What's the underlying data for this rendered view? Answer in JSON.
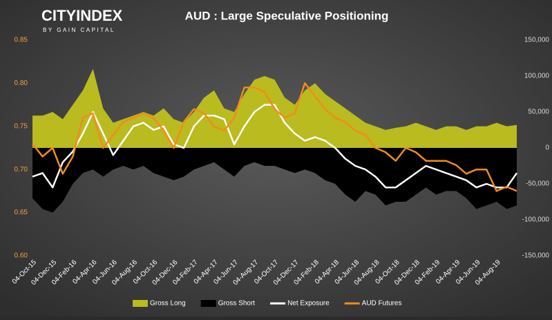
{
  "chart_data": {
    "type": "line",
    "title": "AUD : Large Speculative Positioning",
    "logo": {
      "name": "CITYINDEX",
      "tagline": "BY GAIN CAPITAL"
    },
    "categories": [
      "04-Oct-15",
      null,
      "04-Dec-15",
      null,
      "04-Feb-16",
      null,
      "04-Apr-16",
      null,
      "04-Jun-16",
      null,
      "04-Aug-16",
      null,
      "04-Oct-16",
      null,
      "04-Dec-16",
      null,
      "04-Feb-17",
      null,
      "04-Apr-17",
      null,
      "04-Jun-17",
      null,
      "04-Aug-17",
      null,
      "04-Oct-17",
      null,
      "04-Dec-17",
      null,
      "04-Feb-18",
      null,
      "04-Apr-18",
      null,
      "04-Jun-18",
      null,
      "04-Aug-18",
      null,
      "04-Oct-18",
      null,
      "04-Dec-18",
      null,
      "04-Feb-19",
      null,
      "04-Apr-19",
      null,
      "04-Jun-19",
      null,
      "04-Aug-19",
      null,
      null
    ],
    "series": [
      {
        "name": "Gross Long",
        "type": "area",
        "axis": "y2",
        "color": "#b9bb1f",
        "values": [
          45000,
          45000,
          50000,
          40000,
          60000,
          80000,
          110000,
          55000,
          35000,
          40000,
          45000,
          50000,
          45000,
          55000,
          40000,
          35000,
          50000,
          70000,
          80000,
          55000,
          50000,
          75000,
          95000,
          100000,
          95000,
          70000,
          60000,
          80000,
          90000,
          75000,
          65000,
          55000,
          45000,
          35000,
          30000,
          25000,
          28000,
          30000,
          35000,
          30000,
          25000,
          30000,
          30000,
          25000,
          30000,
          30000,
          35000,
          30000,
          32000
        ]
      },
      {
        "name": "Gross Short",
        "type": "area",
        "axis": "y2",
        "color": "#000000",
        "values": [
          -70000,
          -85000,
          -90000,
          -75000,
          -50000,
          -35000,
          -30000,
          -40000,
          -30000,
          -25000,
          -30000,
          -25000,
          -35000,
          -40000,
          -45000,
          -40000,
          -30000,
          -25000,
          -20000,
          -30000,
          -40000,
          -25000,
          -20000,
          -25000,
          -25000,
          -30000,
          -35000,
          -30000,
          -35000,
          -45000,
          -50000,
          -65000,
          -75000,
          -60000,
          -65000,
          -80000,
          -75000,
          -75000,
          -65000,
          -55000,
          -65000,
          -60000,
          -60000,
          -70000,
          -85000,
          -80000,
          -75000,
          -85000,
          -80000
        ]
      },
      {
        "name": "Net Exposure",
        "type": "line",
        "axis": "y2",
        "color": "#ffffff",
        "values": [
          -40000,
          -35000,
          -55000,
          -20000,
          -5000,
          20000,
          50000,
          20000,
          -10000,
          10000,
          30000,
          35000,
          25000,
          30000,
          5000,
          0,
          30000,
          45000,
          45000,
          40000,
          5000,
          30000,
          50000,
          60000,
          60000,
          35000,
          20000,
          10000,
          15000,
          10000,
          0,
          -15000,
          -25000,
          -30000,
          -40000,
          -55000,
          -55000,
          -45000,
          -35000,
          -25000,
          -30000,
          -35000,
          -40000,
          -45000,
          -55000,
          -50000,
          -55000,
          -55000,
          -35000
        ]
      },
      {
        "name": "AUD Futures",
        "type": "line",
        "axis": "y",
        "color": "#f28c1c",
        "values": [
          0.73,
          0.715,
          0.725,
          0.695,
          0.715,
          0.76,
          0.765,
          0.725,
          0.74,
          0.755,
          0.76,
          0.765,
          0.76,
          0.745,
          0.725,
          0.755,
          0.77,
          0.765,
          0.75,
          0.745,
          0.76,
          0.795,
          0.795,
          0.79,
          0.77,
          0.76,
          0.765,
          0.8,
          0.785,
          0.77,
          0.76,
          0.755,
          0.745,
          0.74,
          0.725,
          0.72,
          0.71,
          0.725,
          0.72,
          0.71,
          0.71,
          0.71,
          0.705,
          0.695,
          0.7,
          0.7,
          0.675,
          0.68,
          0.675
        ]
      }
    ],
    "ylim": [
      0.6,
      0.85
    ],
    "yticks": [
      {
        "value": 0.6,
        "label": "0.60"
      },
      0.65,
      {
        "value": 0.7,
        "label": "0.70"
      },
      0.75,
      {
        "value": 0.8,
        "label": "0.80"
      },
      0.85
    ],
    "y2lim": [
      -150000,
      150000
    ],
    "y2ticks": [
      {
        "value": -150000,
        "label": "-150,000"
      },
      {
        "value": -100000,
        "label": "-100,000"
      },
      {
        "value": -50000,
        "label": "-50,000"
      },
      0,
      {
        "value": 50000,
        "label": "50,000"
      },
      {
        "value": 100000,
        "label": "100,000"
      },
      {
        "value": 150000,
        "label": "150,000"
      }
    ],
    "legend": "bottom"
  }
}
